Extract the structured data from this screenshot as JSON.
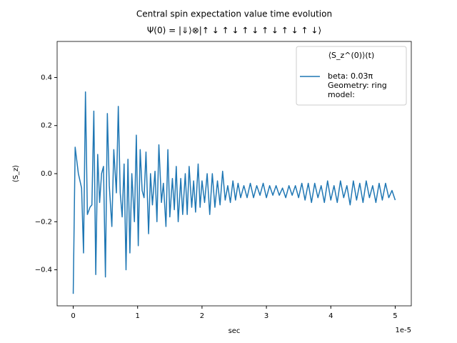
{
  "chart_data": {
    "type": "line",
    "title": "Central spin expectation value time evolution",
    "subtitle": "Ψ(0) = |⇓⟩⊗|↑ ↓ ↑ ↓ ↑ ↓ ↑ ↓ ↑ ↓ ↑ ↓⟩",
    "x_label": "sec",
    "y_label": "⟨S_z⟩",
    "x_offset_text": "1e-5",
    "legend_title": "⟨S_z^(0)⟩(t)",
    "legend_position": "upper right",
    "x": [
      0,
      0.03,
      0.08,
      0.13,
      0.16,
      0.19,
      0.22,
      0.26,
      0.29,
      0.32,
      0.35,
      0.38,
      0.41,
      0.44,
      0.47,
      0.5,
      0.53,
      0.56,
      0.6,
      0.63,
      0.67,
      0.7,
      0.73,
      0.76,
      0.79,
      0.82,
      0.85,
      0.88,
      0.91,
      0.95,
      0.98,
      1.01,
      1.04,
      1.07,
      1.1,
      1.13,
      1.17,
      1.2,
      1.23,
      1.27,
      1.3,
      1.33,
      1.37,
      1.4,
      1.44,
      1.47,
      1.5,
      1.54,
      1.57,
      1.6,
      1.63,
      1.67,
      1.7,
      1.74,
      1.77,
      1.8,
      1.84,
      1.87,
      1.9,
      1.94,
      1.97,
      2.0,
      2.04,
      2.08,
      2.12,
      2.16,
      2.2,
      2.24,
      2.28,
      2.32,
      2.36,
      2.4,
      2.44,
      2.48,
      2.52,
      2.56,
      2.6,
      2.65,
      2.7,
      2.75,
      2.8,
      2.85,
      2.9,
      2.95,
      3.0,
      3.05,
      3.1,
      3.15,
      3.2,
      3.25,
      3.3,
      3.35,
      3.4,
      3.45,
      3.5,
      3.55,
      3.6,
      3.65,
      3.7,
      3.75,
      3.8,
      3.85,
      3.9,
      3.95,
      4.0,
      4.05,
      4.1,
      4.15,
      4.2,
      4.25,
      4.3,
      4.35,
      4.4,
      4.45,
      4.5,
      4.55,
      4.6,
      4.65,
      4.7,
      4.75,
      4.8,
      4.85,
      4.9,
      4.95,
      5.0
    ],
    "series": [
      {
        "name": "beta: 0.03π\nGeometry: ring\nmodel:",
        "color": "#1f77b4",
        "values": [
          -0.5,
          0.11,
          0.0,
          -0.06,
          -0.33,
          0.34,
          -0.17,
          -0.14,
          -0.13,
          0.26,
          -0.42,
          0.08,
          -0.12,
          0.0,
          0.03,
          -0.43,
          0.25,
          -0.05,
          -0.22,
          0.1,
          -0.08,
          0.28,
          -0.08,
          -0.18,
          0.04,
          -0.4,
          0.06,
          -0.33,
          0.0,
          -0.2,
          0.16,
          -0.3,
          0.1,
          -0.07,
          -0.1,
          0.09,
          -0.25,
          0.0,
          -0.13,
          0.01,
          -0.2,
          0.12,
          -0.12,
          -0.04,
          -0.22,
          0.1,
          -0.18,
          -0.02,
          -0.15,
          0.03,
          -0.2,
          -0.02,
          -0.17,
          0.0,
          -0.17,
          0.03,
          -0.14,
          -0.03,
          -0.16,
          0.04,
          -0.14,
          -0.03,
          -0.12,
          0.0,
          -0.17,
          0.0,
          -0.14,
          -0.03,
          -0.13,
          0.01,
          -0.11,
          -0.05,
          -0.12,
          -0.03,
          -0.11,
          -0.04,
          -0.1,
          -0.05,
          -0.1,
          -0.04,
          -0.1,
          -0.05,
          -0.09,
          -0.04,
          -0.1,
          -0.05,
          -0.09,
          -0.05,
          -0.09,
          -0.06,
          -0.1,
          -0.05,
          -0.09,
          -0.05,
          -0.1,
          -0.04,
          -0.11,
          -0.04,
          -0.12,
          -0.04,
          -0.1,
          -0.05,
          -0.12,
          -0.03,
          -0.11,
          -0.05,
          -0.12,
          -0.03,
          -0.1,
          -0.05,
          -0.13,
          -0.03,
          -0.11,
          -0.04,
          -0.12,
          -0.03,
          -0.1,
          -0.05,
          -0.12,
          -0.04,
          -0.11,
          -0.04,
          -0.1,
          -0.07,
          -0.11
        ]
      }
    ],
    "xlim": [
      -0.25,
      5.25
    ],
    "ylim": [
      -0.55,
      0.55
    ],
    "xticks": [
      0,
      1,
      2,
      3,
      4,
      5
    ],
    "yticks": [
      {
        "value": -0.4,
        "label": "−0.4"
      },
      {
        "value": -0.2,
        "label": "−0.2"
      },
      {
        "value": 0,
        "label": "0.0"
      },
      0.2,
      0.4
    ],
    "grid": false
  }
}
